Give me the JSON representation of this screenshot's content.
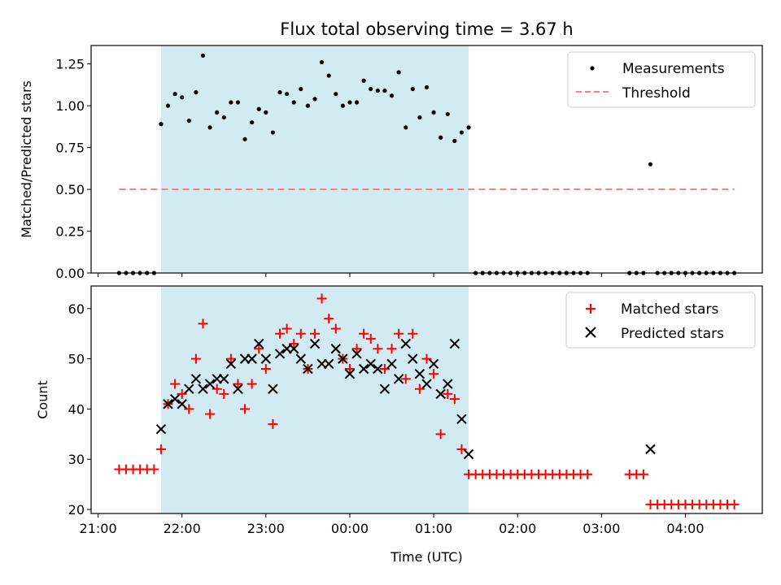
{
  "chart_data": [
    {
      "type": "scatter",
      "title": "Flux total observing time = 3.67 h",
      "xlabel": "",
      "ylabel": "Matched/Predicted stars",
      "ylim": [
        0,
        1.36
      ],
      "yticks": [
        "0.00",
        "0.25",
        "0.50",
        "0.75",
        "1.00",
        "1.25"
      ],
      "yticks_values": [
        0,
        0.25,
        0.5,
        0.75,
        1.0,
        1.25
      ],
      "legend_position": "top-right",
      "highlight": {
        "start": "21:45",
        "end": "01:25",
        "color": "#add8e6"
      },
      "threshold": {
        "name": "Threshold",
        "value": 0.5,
        "x_start": "21:15",
        "x_end": "04:35",
        "color": "#ff7f7f"
      },
      "series": [
        {
          "name": "Measurements",
          "color": "#000000",
          "points": [
            [
              "21:15",
              0
            ],
            [
              "21:20",
              0
            ],
            [
              "21:25",
              0
            ],
            [
              "21:30",
              0
            ],
            [
              "21:35",
              0
            ],
            [
              "21:40",
              0
            ],
            [
              "21:45",
              0.89
            ],
            [
              "21:50",
              1.0
            ],
            [
              "21:55",
              1.07
            ],
            [
              "22:00",
              1.05
            ],
            [
              "22:05",
              0.91
            ],
            [
              "22:10",
              1.08
            ],
            [
              "22:15",
              1.3
            ],
            [
              "22:20",
              0.87
            ],
            [
              "22:25",
              0.96
            ],
            [
              "22:30",
              0.93
            ],
            [
              "22:35",
              1.02
            ],
            [
              "22:40",
              1.02
            ],
            [
              "22:45",
              0.8
            ],
            [
              "22:50",
              0.9
            ],
            [
              "22:55",
              0.98
            ],
            [
              "23:00",
              0.96
            ],
            [
              "23:05",
              0.84
            ],
            [
              "23:10",
              1.08
            ],
            [
              "23:15",
              1.07
            ],
            [
              "23:20",
              1.02
            ],
            [
              "23:25",
              1.1
            ],
            [
              "23:30",
              1.0
            ],
            [
              "23:35",
              1.04
            ],
            [
              "23:40",
              1.26
            ],
            [
              "23:45",
              1.18
            ],
            [
              "23:50",
              1.07
            ],
            [
              "23:55",
              1.0
            ],
            [
              "00:00",
              1.02
            ],
            [
              "00:05",
              1.02
            ],
            [
              "00:10",
              1.15
            ],
            [
              "00:15",
              1.1
            ],
            [
              "00:20",
              1.09
            ],
            [
              "00:25",
              1.09
            ],
            [
              "00:30",
              1.06
            ],
            [
              "00:35",
              1.2
            ],
            [
              "00:40",
              0.87
            ],
            [
              "00:45",
              1.1
            ],
            [
              "00:50",
              0.93
            ],
            [
              "00:55",
              1.11
            ],
            [
              "01:00",
              0.96
            ],
            [
              "01:05",
              0.81
            ],
            [
              "01:10",
              0.95
            ],
            [
              "01:15",
              0.79
            ],
            [
              "01:20",
              0.84
            ],
            [
              "01:25",
              0.87
            ],
            [
              "01:30",
              0
            ],
            [
              "01:35",
              0
            ],
            [
              "01:40",
              0
            ],
            [
              "01:45",
              0
            ],
            [
              "01:50",
              0
            ],
            [
              "01:55",
              0
            ],
            [
              "02:00",
              0
            ],
            [
              "02:05",
              0
            ],
            [
              "02:10",
              0
            ],
            [
              "02:15",
              0
            ],
            [
              "02:20",
              0
            ],
            [
              "02:25",
              0
            ],
            [
              "02:30",
              0
            ],
            [
              "02:35",
              0
            ],
            [
              "02:40",
              0
            ],
            [
              "02:45",
              0
            ],
            [
              "02:50",
              0
            ],
            [
              "03:20",
              0
            ],
            [
              "03:25",
              0
            ],
            [
              "03:30",
              0
            ],
            [
              "03:35",
              0.65
            ],
            [
              "03:40",
              0
            ],
            [
              "03:45",
              0
            ],
            [
              "03:50",
              0
            ],
            [
              "03:55",
              0
            ],
            [
              "04:00",
              0
            ],
            [
              "04:05",
              0
            ],
            [
              "04:10",
              0
            ],
            [
              "04:15",
              0
            ],
            [
              "04:20",
              0
            ],
            [
              "04:25",
              0
            ],
            [
              "04:30",
              0
            ],
            [
              "04:35",
              0
            ]
          ]
        }
      ]
    },
    {
      "type": "scatter",
      "title": "",
      "xlabel": "Time (UTC)",
      "ylabel": "Count",
      "ylim": [
        19.2,
        64.5
      ],
      "yticks": [
        "20",
        "30",
        "40",
        "50",
        "60"
      ],
      "yticks_values": [
        20,
        30,
        40,
        50,
        60
      ],
      "xticks": [
        "21:00",
        "22:00",
        "23:00",
        "00:00",
        "01:00",
        "02:00",
        "03:00",
        "04:00"
      ],
      "xlim": [
        "20:55",
        "04:55"
      ],
      "legend_position": "top-right",
      "highlight": {
        "start": "21:45",
        "end": "01:25",
        "color": "#add8e6"
      },
      "series": [
        {
          "name": "Matched stars",
          "marker": "plus",
          "color": "#ff0000",
          "points": [
            [
              "21:15",
              28
            ],
            [
              "21:20",
              28
            ],
            [
              "21:25",
              28
            ],
            [
              "21:30",
              28
            ],
            [
              "21:35",
              28
            ],
            [
              "21:40",
              28
            ],
            [
              "21:45",
              32
            ],
            [
              "21:50",
              41
            ],
            [
              "21:55",
              45
            ],
            [
              "22:00",
              43
            ],
            [
              "22:05",
              40
            ],
            [
              "22:10",
              50
            ],
            [
              "22:15",
              57
            ],
            [
              "22:20",
              39
            ],
            [
              "22:25",
              44
            ],
            [
              "22:30",
              43
            ],
            [
              "22:35",
              50
            ],
            [
              "22:40",
              45
            ],
            [
              "22:45",
              40
            ],
            [
              "22:50",
              45
            ],
            [
              "22:55",
              52
            ],
            [
              "23:00",
              48
            ],
            [
              "23:05",
              37
            ],
            [
              "23:10",
              55
            ],
            [
              "23:15",
              56
            ],
            [
              "23:20",
              53
            ],
            [
              "23:25",
              55
            ],
            [
              "23:30",
              48
            ],
            [
              "23:35",
              55
            ],
            [
              "23:40",
              62
            ],
            [
              "23:45",
              58
            ],
            [
              "23:50",
              56
            ],
            [
              "23:55",
              50
            ],
            [
              "00:00",
              48
            ],
            [
              "00:05",
              52
            ],
            [
              "00:10",
              55
            ],
            [
              "00:15",
              54
            ],
            [
              "00:20",
              52
            ],
            [
              "00:25",
              48
            ],
            [
              "00:30",
              52
            ],
            [
              "00:35",
              55
            ],
            [
              "00:40",
              46
            ],
            [
              "00:45",
              55
            ],
            [
              "00:50",
              44
            ],
            [
              "00:55",
              50
            ],
            [
              "01:00",
              47
            ],
            [
              "01:05",
              35
            ],
            [
              "01:10",
              43
            ],
            [
              "01:15",
              42
            ],
            [
              "01:20",
              32
            ],
            [
              "01:25",
              27
            ],
            [
              "01:30",
              27
            ],
            [
              "01:35",
              27
            ],
            [
              "01:40",
              27
            ],
            [
              "01:45",
              27
            ],
            [
              "01:50",
              27
            ],
            [
              "01:55",
              27
            ],
            [
              "02:00",
              27
            ],
            [
              "02:05",
              27
            ],
            [
              "02:10",
              27
            ],
            [
              "02:15",
              27
            ],
            [
              "02:20",
              27
            ],
            [
              "02:25",
              27
            ],
            [
              "02:30",
              27
            ],
            [
              "02:35",
              27
            ],
            [
              "02:40",
              27
            ],
            [
              "02:45",
              27
            ],
            [
              "02:50",
              27
            ],
            [
              "03:20",
              27
            ],
            [
              "03:25",
              27
            ],
            [
              "03:30",
              27
            ],
            [
              "03:35",
              21
            ],
            [
              "03:40",
              21
            ],
            [
              "03:45",
              21
            ],
            [
              "03:50",
              21
            ],
            [
              "03:55",
              21
            ],
            [
              "04:00",
              21
            ],
            [
              "04:05",
              21
            ],
            [
              "04:10",
              21
            ],
            [
              "04:15",
              21
            ],
            [
              "04:20",
              21
            ],
            [
              "04:25",
              21
            ],
            [
              "04:30",
              21
            ],
            [
              "04:35",
              21
            ]
          ]
        },
        {
          "name": "Predicted stars",
          "marker": "x",
          "color": "#000000",
          "points": [
            [
              "21:45",
              36
            ],
            [
              "21:50",
              41
            ],
            [
              "21:55",
              42
            ],
            [
              "22:00",
              41
            ],
            [
              "22:05",
              44
            ],
            [
              "22:10",
              46
            ],
            [
              "22:15",
              44
            ],
            [
              "22:20",
              45
            ],
            [
              "22:25",
              46
            ],
            [
              "22:30",
              46
            ],
            [
              "22:35",
              49
            ],
            [
              "22:40",
              44
            ],
            [
              "22:45",
              50
            ],
            [
              "22:50",
              50
            ],
            [
              "22:55",
              53
            ],
            [
              "23:00",
              50
            ],
            [
              "23:05",
              44
            ],
            [
              "23:10",
              51
            ],
            [
              "23:15",
              52
            ],
            [
              "23:20",
              52
            ],
            [
              "23:25",
              50
            ],
            [
              "23:30",
              48
            ],
            [
              "23:35",
              53
            ],
            [
              "23:40",
              49
            ],
            [
              "23:45",
              49
            ],
            [
              "23:50",
              52
            ],
            [
              "23:55",
              50
            ],
            [
              "00:00",
              47
            ],
            [
              "00:05",
              51
            ],
            [
              "00:10",
              48
            ],
            [
              "00:15",
              49
            ],
            [
              "00:20",
              48
            ],
            [
              "00:25",
              44
            ],
            [
              "00:30",
              49
            ],
            [
              "00:35",
              46
            ],
            [
              "00:40",
              53
            ],
            [
              "00:45",
              50
            ],
            [
              "00:50",
              47
            ],
            [
              "00:55",
              45
            ],
            [
              "01:00",
              49
            ],
            [
              "01:05",
              43
            ],
            [
              "01:10",
              45
            ],
            [
              "01:15",
              53
            ],
            [
              "01:20",
              38
            ],
            [
              "01:25",
              31
            ],
            [
              "03:35",
              32
            ]
          ]
        }
      ]
    }
  ]
}
